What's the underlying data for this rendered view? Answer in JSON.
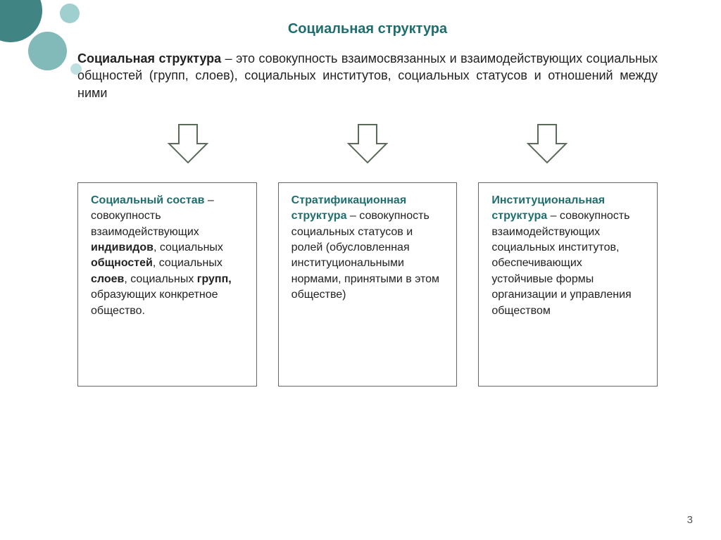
{
  "title": "Социальная структура",
  "intro_lead": "Социальная структура",
  "intro_rest": " – это совокупность взаимосвязанных и взаимодействующих социальных общностей (групп, слоев), социальных институтов, социальных статусов и отношений между ними",
  "arrow_style": {
    "fill": "#ffffff",
    "stroke": "#5a6b5a",
    "stroke_width": 2
  },
  "boxes": [
    {
      "term": "Социальный состав",
      "body_html": " – совокупность взаимодействующих <b>индивидов</b>, социальных <b>общностей</b>, социальных <b>слоев</b>, социальных <b>групп,</b> образующих конкретное общество."
    },
    {
      "term": "Стратификационная структура",
      "body_html": "  – совокупность социальных статусов и ролей (обусловленная институциональными нормами, принятыми в этом обществе)"
    },
    {
      "term": "Институциональная структура",
      "body_html": "  – совокупность взаимодействующих социальных институтов, обеспечивающих устойчивые формы организации и управления обществом"
    }
  ],
  "page_number": "3",
  "colors": {
    "accent": "#1f6e6e",
    "text": "#222222",
    "box_border": "#666666",
    "background": "#ffffff"
  },
  "box_count": 3
}
